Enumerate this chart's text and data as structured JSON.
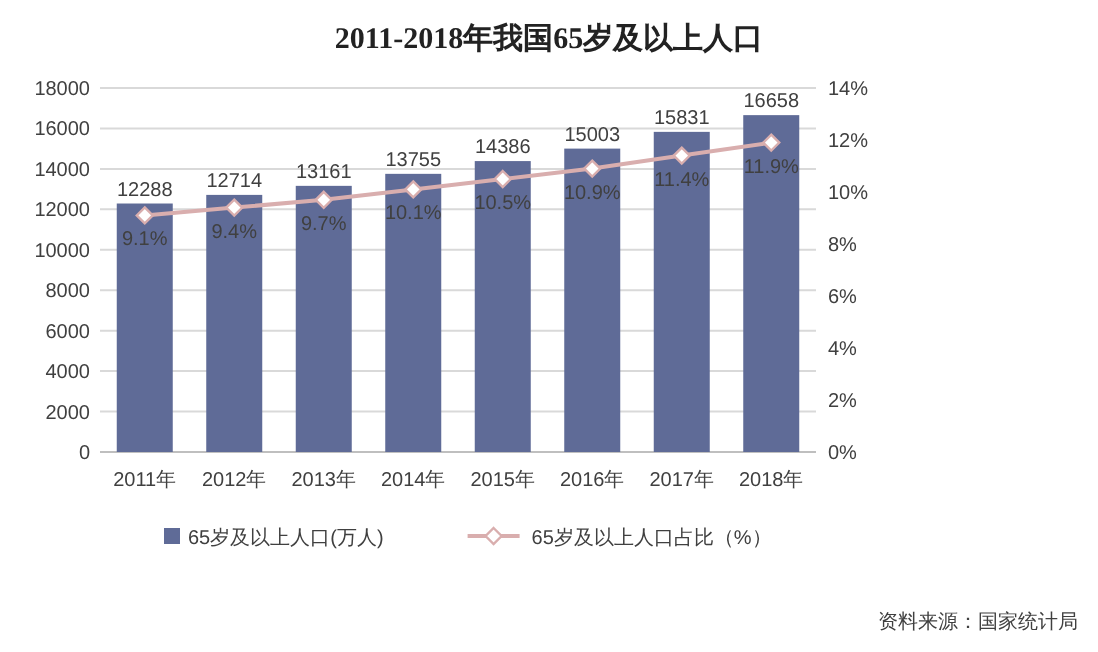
{
  "chart_data": {
    "type": "bar",
    "title": "2011-2018年我国65岁及以上人口",
    "categories": [
      "2011年",
      "2012年",
      "2013年",
      "2014年",
      "2015年",
      "2016年",
      "2017年",
      "2018年"
    ],
    "series": [
      {
        "name": "65岁及以上人口(万人)",
        "color": "#5f6b97",
        "values": [
          12288,
          12714,
          13161,
          13755,
          14386,
          15003,
          15831,
          16658
        ]
      },
      {
        "name": "65岁及以上人口占比（%）",
        "type": "line",
        "axis": "y2",
        "color": "#d9aeae",
        "values": [
          9.1,
          9.4,
          9.7,
          10.1,
          10.5,
          10.9,
          11.4,
          11.9
        ],
        "value_labels": [
          "9.1%",
          "9.4%",
          "9.7%",
          "10.1%",
          "10.5%",
          "10.9%",
          "11.4%",
          "11.9%"
        ]
      }
    ],
    "data_labels": true,
    "marker": "diamond",
    "grid": "y",
    "legend": "bottom",
    "ylim": [
      0,
      18000
    ],
    "yticks": [
      0,
      2000,
      4000,
      6000,
      8000,
      10000,
      12000,
      14000,
      16000,
      18000
    ],
    "y2lim": [
      0,
      14
    ],
    "y2ticks": [
      {
        "value": 0,
        "label": "0%"
      },
      {
        "value": 2,
        "label": "2%"
      },
      {
        "value": 4,
        "label": "4%"
      },
      {
        "value": 6,
        "label": "6%"
      },
      {
        "value": 8,
        "label": "8%"
      },
      {
        "value": 10,
        "label": "10%"
      },
      {
        "value": 12,
        "label": "12%"
      },
      {
        "value": 14,
        "label": "14%"
      }
    ],
    "annotations": [
      "资料来源：国家统计局"
    ]
  }
}
